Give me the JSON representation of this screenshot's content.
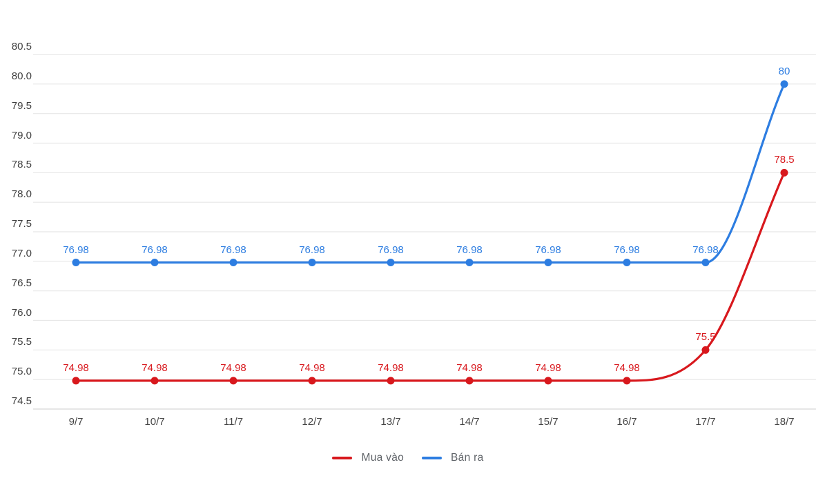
{
  "chart_data": {
    "type": "line",
    "x": [
      "9/7",
      "10/7",
      "11/7",
      "12/7",
      "13/7",
      "14/7",
      "15/7",
      "16/7",
      "17/7",
      "18/7"
    ],
    "series": [
      {
        "name": "Mua vào",
        "color": "#d8181d",
        "values": [
          74.98,
          74.98,
          74.98,
          74.98,
          74.98,
          74.98,
          74.98,
          74.98,
          75.5,
          78.5
        ],
        "point_labels": [
          "74.98",
          "74.98",
          "74.98",
          "74.98",
          "74.98",
          "74.98",
          "74.98",
          "74.98",
          "75.5",
          "78.5"
        ]
      },
      {
        "name": "Bán ra",
        "color": "#2d7de1",
        "values": [
          76.98,
          76.98,
          76.98,
          76.98,
          76.98,
          76.98,
          76.98,
          76.98,
          76.98,
          80
        ],
        "point_labels": [
          "76.98",
          "76.98",
          "76.98",
          "76.98",
          "76.98",
          "76.98",
          "76.98",
          "76.98",
          "76.98",
          "80"
        ]
      }
    ],
    "title": "",
    "xlabel": "",
    "ylabel": "",
    "ylim": [
      74.5,
      80.5
    ],
    "ytick_labels": [
      "80.5",
      "80.0",
      "79.5",
      "79.0",
      "78.5",
      "78.0",
      "77.5",
      "77.0",
      "76.5",
      "76.0",
      "75.5",
      "75.0",
      "74.5"
    ],
    "ytick_values": [
      80.5,
      80.0,
      79.5,
      79.0,
      78.5,
      78.0,
      77.5,
      77.0,
      76.5,
      76.0,
      75.5,
      75.0,
      74.5
    ],
    "grid": true,
    "line_smoothing": "monotone",
    "legend_position": "bottom"
  },
  "legend": {
    "items": [
      {
        "label": "Mua vào",
        "color": "#d8181d"
      },
      {
        "label": "Bán ra",
        "color": "#2d7de1"
      }
    ]
  },
  "colors": {
    "background": "#ffffff",
    "gridline": "#e7e7e7",
    "axis_line": "#d6d6d6",
    "ytick_text": "#3d3d3d",
    "xtick_text": "#454545",
    "legend_text": "#5f6368",
    "series_red": "#d8181d",
    "series_blue": "#2d7de1"
  }
}
